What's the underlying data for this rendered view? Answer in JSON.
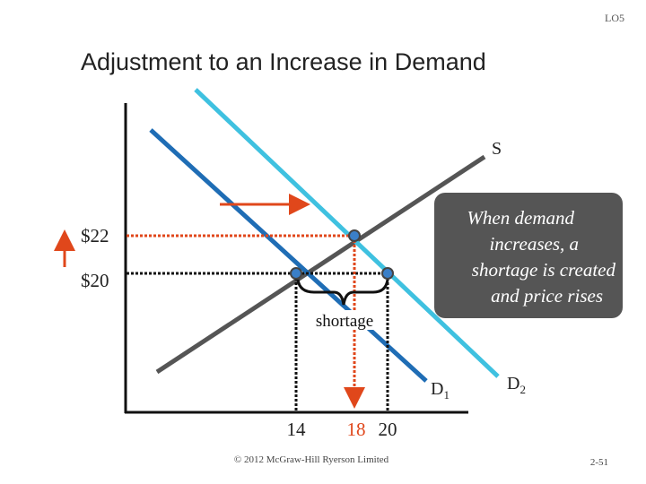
{
  "header": {
    "code": "LO5",
    "title": "Adjustment to an Increase in Demand"
  },
  "diagram": {
    "supply_label": "S",
    "demand1": {
      "letter": "D",
      "sub": "1"
    },
    "demand2": {
      "letter": "D",
      "sub": "2"
    },
    "price_labels": [
      "$22",
      "$20"
    ],
    "quantity_labels": [
      "14",
      "18",
      "20"
    ],
    "gap_label": "shortage",
    "callout": [
      "When demand",
      "increases, a",
      "shortage is created",
      "and price rises"
    ]
  },
  "footer": {
    "copyright": "© 2012 McGraw-Hill Ryerson Limited",
    "page": "2-51"
  }
}
